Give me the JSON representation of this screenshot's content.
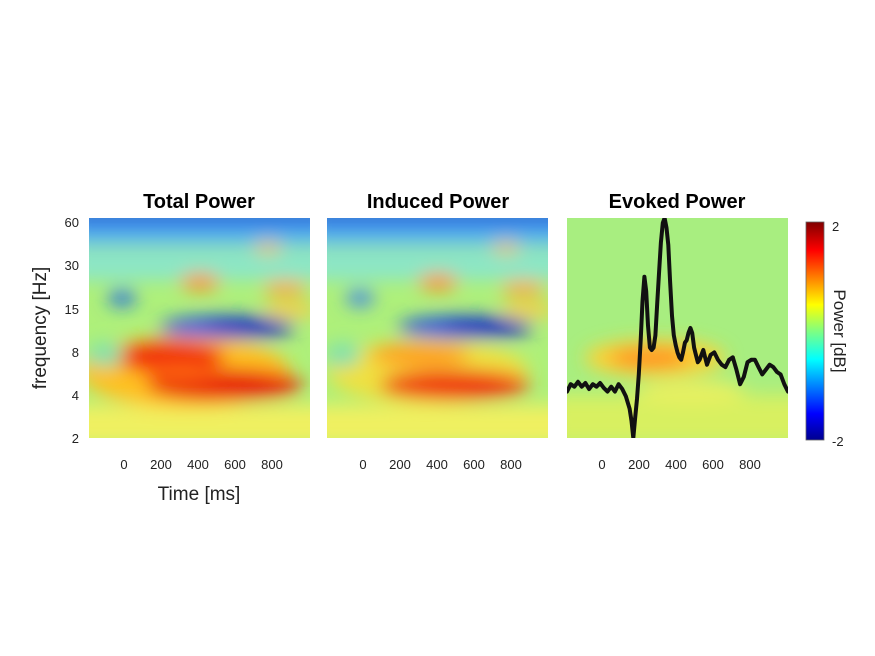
{
  "chart_data": [
    {
      "type": "heatmap",
      "title": "Total Power",
      "xlabel": "Time [ms]",
      "ylabel": "frequency [Hz]",
      "x_ticks": [
        "0",
        "200",
        "400",
        "600",
        "800"
      ],
      "y_ticks": [
        "2",
        "4",
        "8",
        "15",
        "30",
        "60"
      ],
      "xlim": [
        -200,
        1000
      ],
      "ylim": [
        2,
        60
      ],
      "y_scale": "log"
    },
    {
      "type": "heatmap",
      "title": "Induced Power",
      "x_ticks": [
        "0",
        "200",
        "400",
        "600",
        "800"
      ],
      "xlim": [
        -200,
        1000
      ],
      "ylim": [
        2,
        60
      ],
      "y_scale": "log"
    },
    {
      "type": "heatmap",
      "title": "Evoked Power",
      "x_ticks": [
        "0",
        "200",
        "400",
        "600",
        "800"
      ],
      "xlim": [
        -200,
        1000
      ],
      "ylim": [
        2,
        60
      ],
      "y_scale": "log",
      "overlay": {
        "type": "line",
        "color": "#111111",
        "x": [
          -200,
          -180,
          -160,
          -140,
          -120,
          -100,
          -80,
          -60,
          -40,
          -20,
          0,
          20,
          40,
          60,
          80,
          100,
          120,
          140,
          150,
          160,
          170,
          180,
          190,
          200,
          210,
          220,
          230,
          240,
          250,
          260,
          270,
          280,
          290,
          300,
          310,
          320,
          330,
          340,
          350,
          360,
          370,
          380,
          390,
          400,
          410,
          420,
          430,
          440,
          450,
          460,
          470,
          480,
          490,
          500,
          510,
          520,
          530,
          540,
          550,
          560,
          570,
          580,
          600,
          620,
          640,
          660,
          680,
          700,
          720,
          740,
          760,
          780,
          800,
          820,
          840,
          860,
          880,
          900,
          920,
          940,
          960,
          980,
          1000
        ],
        "y": [
          -3.3,
          -3.0,
          -3.1,
          -2.9,
          -3.1,
          -2.95,
          -3.2,
          -3.0,
          -3.1,
          -2.95,
          -3.15,
          -3.3,
          -3.1,
          -3.3,
          -3.0,
          -3.2,
          -3.5,
          -4.0,
          -4.5,
          -5.2,
          -4.4,
          -3.6,
          -2.6,
          -1.2,
          0.4,
          1.4,
          0.8,
          -0.6,
          -1.5,
          -1.6,
          -1.5,
          -1.0,
          0.3,
          1.6,
          2.8,
          3.6,
          3.8,
          3.4,
          2.7,
          1.2,
          -0.2,
          -1.0,
          -1.4,
          -1.7,
          -1.9,
          -2.0,
          -1.7,
          -1.3,
          -1.2,
          -0.9,
          -0.7,
          -0.9,
          -1.5,
          -1.8,
          -2.1,
          -2.0,
          -1.8,
          -1.6,
          -1.9,
          -2.2,
          -2.0,
          -1.8,
          -1.7,
          -2.0,
          -2.2,
          -2.3,
          -2.0,
          -1.9,
          -2.4,
          -3.0,
          -2.7,
          -2.1,
          -2.0,
          -2.0,
          -2.3,
          -2.6,
          -2.4,
          -2.2,
          -2.3,
          -2.5,
          -2.6,
          -3.0,
          -3.3
        ]
      }
    }
  ],
  "colorbar": {
    "label": "Power [dB]",
    "min_label": "-2",
    "max_label": "2",
    "min": -2,
    "max": 2,
    "colormap": "jet"
  }
}
